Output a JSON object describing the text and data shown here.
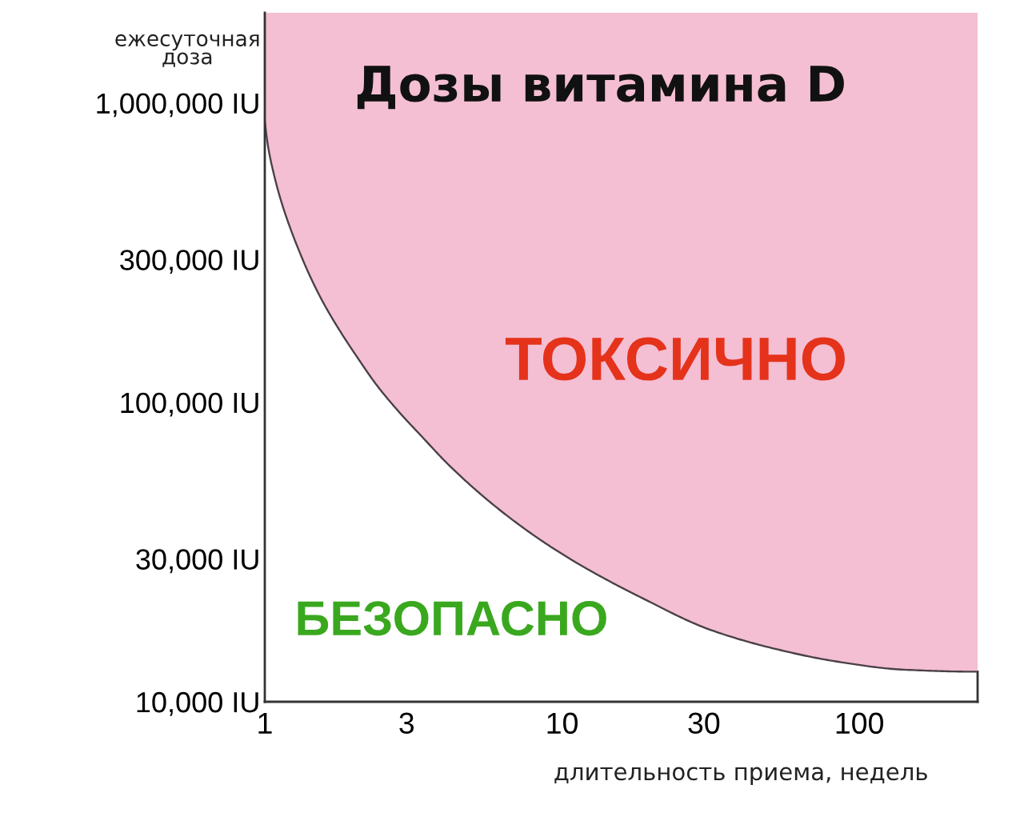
{
  "chart_data": {
    "type": "line",
    "title": "Дозы витамина D",
    "xlabel": "длительность приема, недель",
    "ylabel": "ежесуточная\nдоза",
    "log": "xy",
    "xlim": [
      1,
      250
    ],
    "ylim": [
      10000,
      2000000
    ],
    "xticks": [
      1,
      3,
      10,
      30,
      100
    ],
    "yticks": [
      {
        "value": 10000,
        "label": "10,000 IU"
      },
      {
        "value": 30000,
        "label": "30,000 IU"
      },
      {
        "value": 100000,
        "label": "100,000 IU"
      },
      {
        "value": 300000,
        "label": "300,000 IU"
      },
      {
        "value": 1000000,
        "label": "1,000,000 IU"
      }
    ],
    "grid": false,
    "line_style": "solid",
    "annotations": [
      "ТОКСИЧНО",
      "БЕЗОПАСНО"
    ],
    "series": [
      {
        "color": "#4a4048",
        "x": [
          1,
          1.025,
          1.071,
          1.132,
          1.212,
          1.297,
          1.424,
          1.582,
          1.791,
          2.051,
          2.366,
          2.798,
          3.37,
          4.13,
          5.23,
          6.62,
          8.43,
          10.7,
          13.4,
          18.6,
          31,
          51,
          85,
          141,
          250
        ],
        "values": [
          870000,
          718000,
          582000,
          474000,
          387000,
          325000,
          262000,
          213000,
          173000,
          141000,
          115000,
          94000,
          77000,
          62200,
          50100,
          41400,
          34800,
          29900,
          26300,
          22200,
          17500,
          15100,
          13600,
          12800,
          12600
        ],
        "lower": [
          870000,
          718000,
          582000,
          474000,
          387000,
          325000,
          262000,
          213000,
          173000,
          141000,
          115000,
          94000,
          77000,
          62200,
          50100,
          41400,
          34800,
          29900,
          26300,
          22200,
          17500,
          15100,
          13600,
          12800,
          12600
        ],
        "upper": [
          2000000,
          2000000,
          2000000,
          2000000,
          2000000,
          2000000,
          2000000,
          2000000,
          2000000,
          2000000,
          2000000,
          2000000,
          2000000,
          2000000,
          2000000,
          2000000,
          2000000,
          2000000,
          2000000,
          2000000,
          2000000,
          2000000,
          2000000,
          2000000,
          2000000
        ]
      }
    ]
  }
}
